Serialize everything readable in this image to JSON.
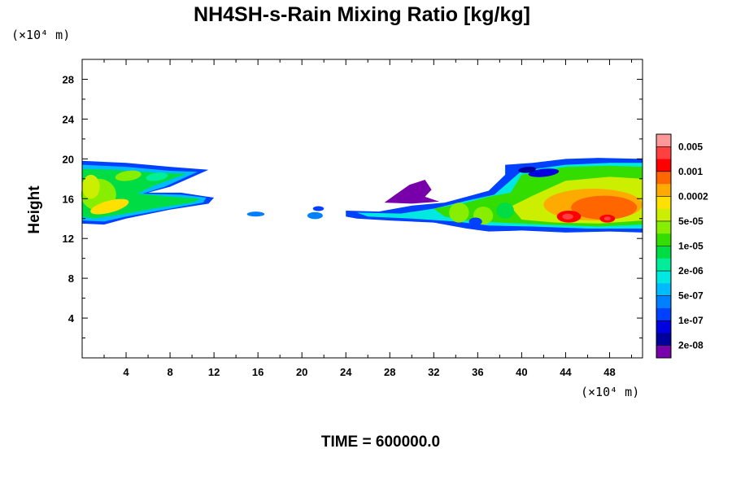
{
  "chart_data": {
    "type": "heatmap",
    "title": "NH4SH-s-Rain Mixing Ratio [kg/kg]",
    "x_unit": "(×10⁴ m)",
    "y_unit": "(×10⁴ m)",
    "ylabel": "Height",
    "xlabel": "",
    "time_label": "TIME = 600000.0",
    "xlim": [
      0,
      51
    ],
    "ylim": [
      0,
      30
    ],
    "x_ticks": [
      4,
      8,
      12,
      16,
      20,
      24,
      28,
      32,
      36,
      40,
      44,
      48
    ],
    "y_ticks": [
      4,
      8,
      12,
      16,
      20,
      24,
      28
    ],
    "colorbar": {
      "labels": [
        "0.005",
        "0.001",
        "0.0002",
        "5e-05",
        "1e-05",
        "2e-06",
        "5e-07",
        "1e-07",
        "2e-08"
      ],
      "colors_top_to_bottom": [
        "#ff9999",
        "#ff4040",
        "#ff0000",
        "#ff6600",
        "#ffaa00",
        "#ffe000",
        "#ccee00",
        "#88ee00",
        "#33dd00",
        "#00dd44",
        "#00ee99",
        "#00e8e0",
        "#00bbff",
        "#0080ff",
        "#0040ff",
        "#0000e0",
        "#00009a",
        "#7700aa"
      ]
    },
    "regions": [
      {
        "x_range": [
          0,
          12
        ],
        "y_range": [
          13.5,
          19.8
        ],
        "peak_level": "5e-05"
      },
      {
        "x_range": [
          15,
          16.5
        ],
        "y_range": [
          14.2,
          14.7
        ],
        "peak_level": "1e-07"
      },
      {
        "x_range": [
          20.5,
          22
        ],
        "y_range": [
          14,
          15.2
        ],
        "peak_level": "1e-07"
      },
      {
        "x_range": [
          27.5,
          32
        ],
        "y_range": [
          15.5,
          17.8
        ],
        "peak_level": "2e-08"
      },
      {
        "x_range": [
          24,
          51
        ],
        "y_range": [
          12.5,
          20
        ],
        "peak_level": "0.001"
      }
    ]
  }
}
